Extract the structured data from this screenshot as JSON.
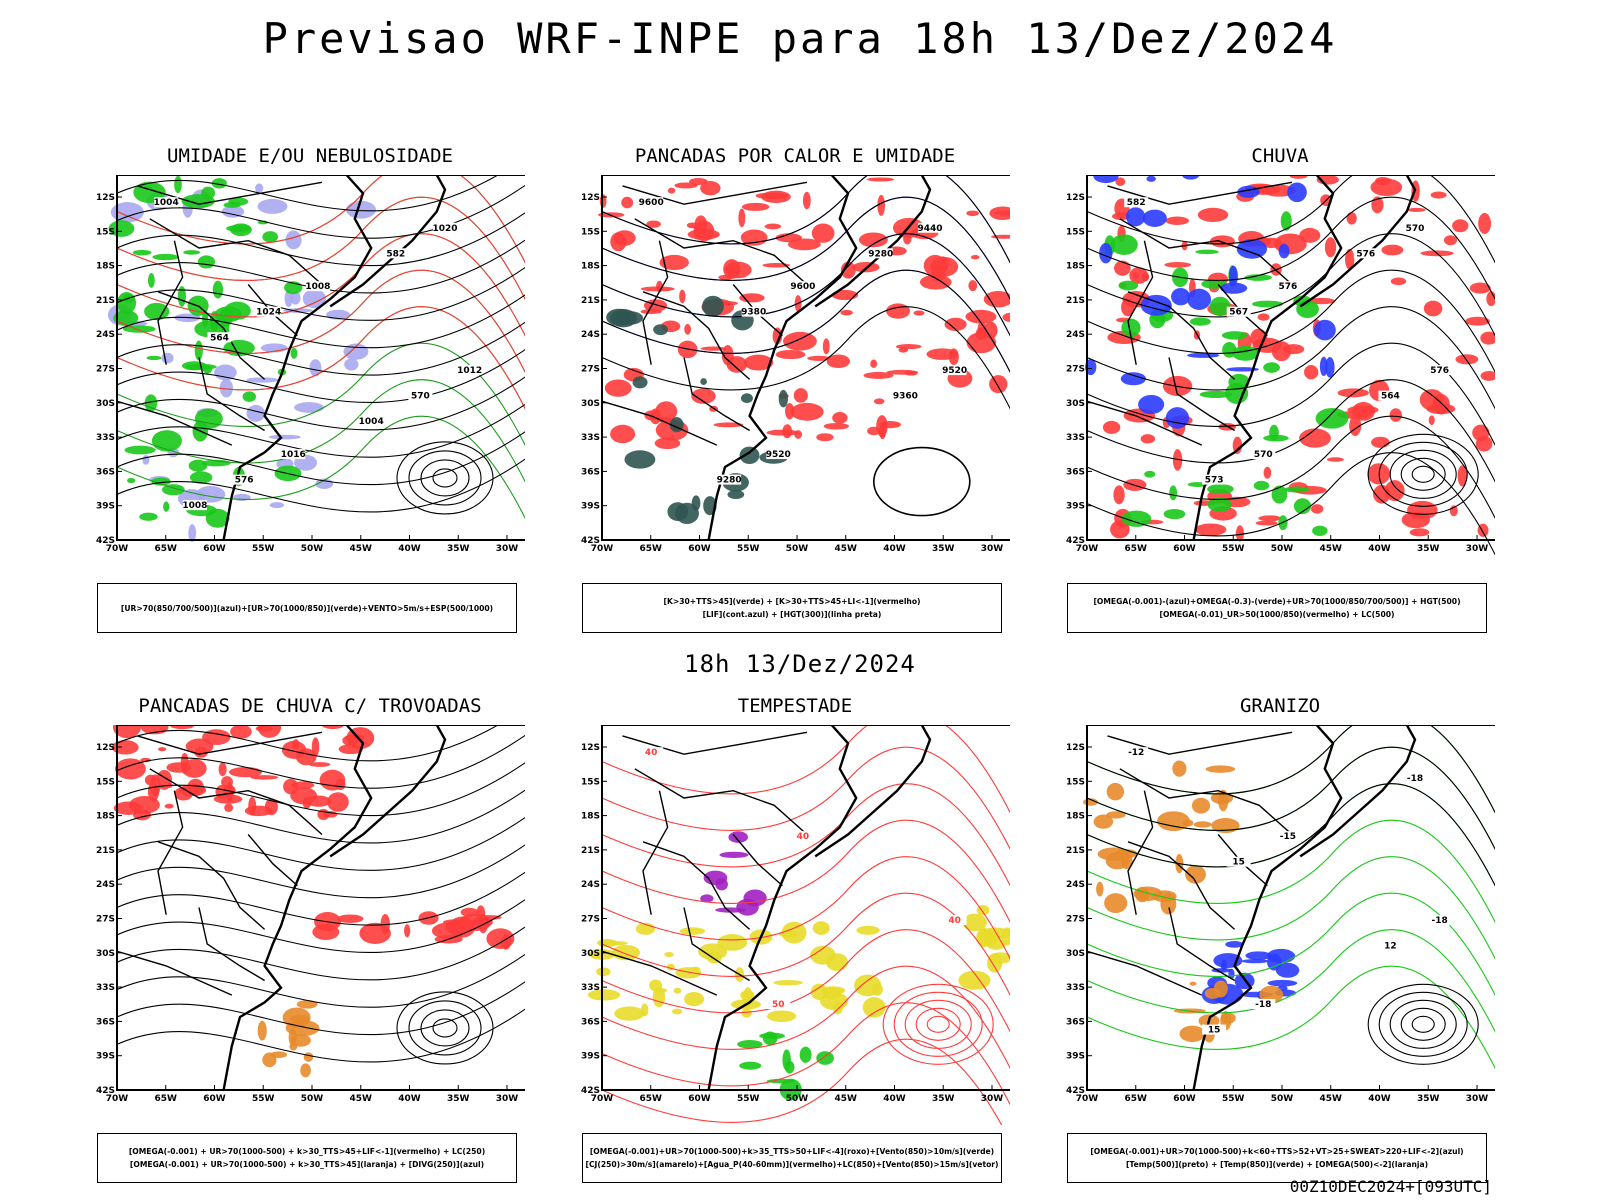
{
  "header": {
    "title": "Previsao WRF-INPE  para 18h 13/Dez/2024",
    "subtitle": "18h 13/Dez/2024",
    "run_stamp": "00Z10DEC2024+[093UTC]"
  },
  "axes": {
    "lat_ticks": [
      "12S",
      "15S",
      "18S",
      "21S",
      "24S",
      "27S",
      "30S",
      "33S",
      "36S",
      "39S",
      "42S"
    ],
    "lon_ticks": [
      "70W",
      "65W",
      "60W",
      "55W",
      "50W",
      "45W",
      "40W",
      "35W",
      "30W"
    ]
  },
  "colors": {
    "red": "#ff3b3b",
    "green": "#19c819",
    "blue": "#2a3cff",
    "lavender": "#a8a8f0",
    "darkteal": "#2f5551",
    "yellow": "#e8dc2a",
    "orange": "#e8892a",
    "purple": "#a020c0"
  },
  "panels": [
    {
      "title": "UMIDADE E/OU NEBULOSIDADE",
      "caption": [
        "[UR>70(850/700/500)](azul)+[UR>70(1000/850)](verde)+VENTO>5m/s+ESP(500/1000)"
      ],
      "contour_labels": [
        "1004",
        "1008",
        "1012",
        "1016",
        "1020",
        "1024",
        "570",
        "576",
        "582",
        "564",
        "1004",
        "1008"
      ]
    },
    {
      "title": "PANCADAS POR CALOR E UMIDADE",
      "caption": [
        "[K>30+TTS>45](verde) + [K>30+TTS>45+LI<-1](vermelho)",
        "[LIF](cont.azul) + [HGT(300)](linha preta)"
      ],
      "contour_labels": [
        "9600",
        "9600",
        "9520",
        "9520",
        "9440",
        "9380",
        "9360",
        "9280",
        "9280"
      ]
    },
    {
      "title": "CHUVA",
      "caption": [
        "[OMEGA(-0.001)-(azul)+OMEGA(-0.3)-(verde)+UR>70(1000/850/700/500)] + HGT(500)",
        "[OMEGA(-0.01)_UR>50(1000/850)(vermelho) + LC(500)"
      ],
      "contour_labels": [
        "582",
        "576",
        "576",
        "570",
        "570",
        "567",
        "564",
        "573",
        "576"
      ]
    },
    {
      "title": "PANCADAS DE CHUVA C/ TROVOADAS",
      "caption": [
        "[OMEGA(-0.001) + UR>70(1000-500) + k>30_TTS>45+LIF<-1](vermelho) + LC(250)",
        "[OMEGA(-0.001) + UR>70(1000-500) + k>30_TTS>45](laranja) + [DIVG(250)](azul)"
      ],
      "contour_labels": []
    },
    {
      "title": "TEMPESTADE",
      "caption": [
        "[OMEGA(-0.001)+UR>70(1000-500)+k>35_TTS>50+LIF<-4](roxo)+[Vento(850)>10m/s](verde)",
        "[CJ(250)>30m/s](amarelo)+[Agua_P(40-60mm)](vermelho)+LC(850)+[Vento(850)>15m/s](vetor)"
      ],
      "contour_labels": [
        "40",
        "40",
        "40",
        "50"
      ]
    },
    {
      "title": "GRANIZO",
      "caption": [
        "[OMEGA(-0.001)+UR>70(1000-500)+k<60+TTS>52+VT>25+SWEAT>220+LIF<-2](azul)",
        "[Temp(500)](preto) + [Temp(850)](verde) + [OMEGA(500)<-2](laranja)"
      ],
      "contour_labels": [
        "-12",
        "-15",
        "-18",
        "-18",
        "-18",
        "15",
        "12",
        "15"
      ]
    }
  ]
}
